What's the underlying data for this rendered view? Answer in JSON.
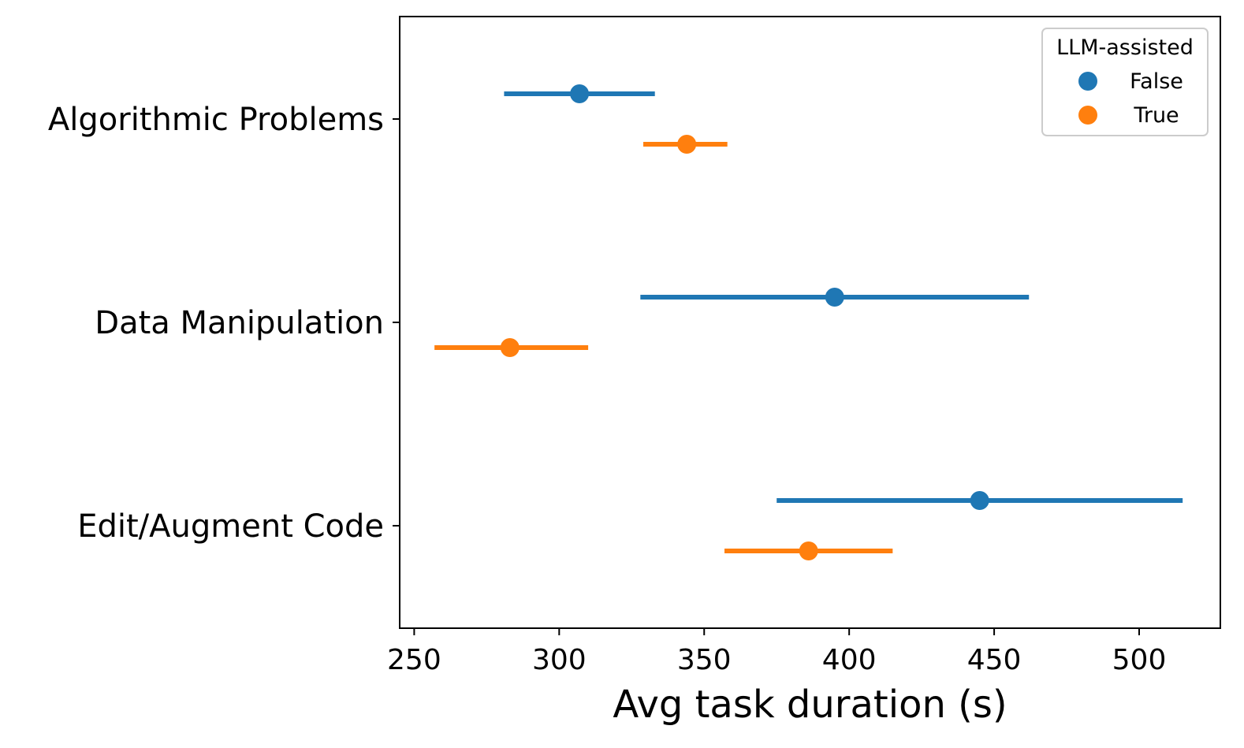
{
  "chart_data": {
    "type": "scatter",
    "subtype": "point-with-error-bars",
    "categories": [
      "Algorithmic Problems",
      "Data Manipulation",
      "Edit/Augment Code"
    ],
    "xlabel": "Avg task duration (s)",
    "ylabel": "",
    "xlim": [
      245,
      528
    ],
    "xticks": [
      250,
      300,
      350,
      400,
      450,
      500
    ],
    "grid": false,
    "legend": {
      "title": "LLM-assisted",
      "position": "top-right"
    },
    "series": [
      {
        "name": "False",
        "color": "#1f77b4",
        "values": [
          307,
          395,
          445
        ],
        "ci_low": [
          281,
          328,
          375
        ],
        "ci_high": [
          333,
          462,
          515
        ]
      },
      {
        "name": "True",
        "color": "#ff7f0e",
        "values": [
          344,
          283,
          386
        ],
        "ci_low": [
          329,
          257,
          357
        ],
        "ci_high": [
          358,
          310,
          415
        ]
      }
    ]
  }
}
